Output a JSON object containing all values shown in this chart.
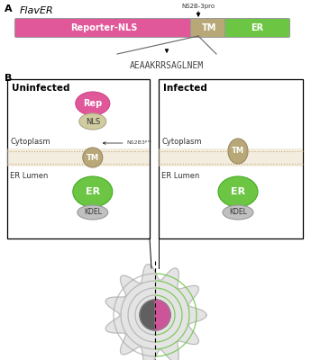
{
  "title": "FlavER",
  "panel_a_label": "A",
  "panel_b_label": "B",
  "reporter_nls_color": "#e0589a",
  "tm_color": "#b8a878",
  "er_green_color": "#6cc644",
  "rep_color": "#e0589a",
  "nls_color": "#d0cca0",
  "kdel_color": "#c0c0c0",
  "cleavage_seq": "AEAAKRRSAGLNEM",
  "ns2b3_label": "NS2B-3pro",
  "tm_label": "TM",
  "reporter_nls_label": "Reporter-NLS",
  "er_label": "ER",
  "uninfected_title": "Uninfected",
  "infected_title": "Infected",
  "cytoplasm_label": "Cytoplasm",
  "er_lumen_label": "ER Lumen",
  "cell_fill_color": "#e0e0e0",
  "nucleus_dark_color": "#606060",
  "nucleus_pink_color": "#cc5599",
  "er_ring_color_green": "#6cc644",
  "membrane_line_color": "#c8aa78",
  "membrane_bg_color": "#e8dcc0"
}
